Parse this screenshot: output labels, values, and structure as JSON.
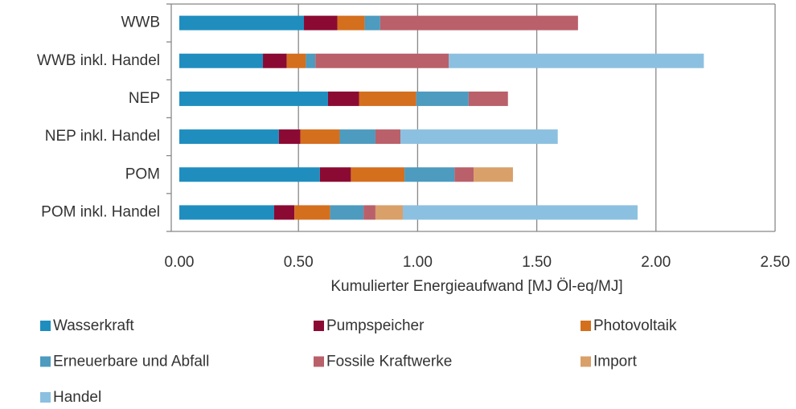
{
  "chart_data": {
    "type": "stacked_barh",
    "categories": [
      "WWB",
      "WWB inkl. Handel",
      "NEP",
      "NEP inkl. Handel",
      "POM",
      "POM inkl. Handel"
    ],
    "series": [
      {
        "name": "Wasserkraft",
        "color": "#1f8ebf",
        "values": [
          0.523,
          0.351,
          0.624,
          0.418,
          0.59,
          0.398
        ]
      },
      {
        "name": "Pumpspeicher",
        "color": "#8b0a33",
        "values": [
          0.14,
          0.1,
          0.13,
          0.09,
          0.13,
          0.085
        ]
      },
      {
        "name": "Photovoltaik",
        "color": "#d46f1e",
        "values": [
          0.115,
          0.08,
          0.24,
          0.165,
          0.225,
          0.15
        ]
      },
      {
        "name": "Erneuerbare und Abfall",
        "color": "#4d9bbf",
        "values": [
          0.065,
          0.04,
          0.22,
          0.15,
          0.21,
          0.14
        ]
      },
      {
        "name": "Fossile Kraftwerke",
        "color": "#b9606a",
        "values": [
          0.83,
          0.56,
          0.165,
          0.105,
          0.08,
          0.05
        ]
      },
      {
        "name": "Import",
        "color": "#d9a06a",
        "values": [
          0,
          0,
          0,
          0,
          0.165,
          0.115
        ]
      },
      {
        "name": "Handel",
        "color": "#8cc0e0",
        "values": [
          0,
          1.07,
          0,
          0.66,
          0,
          0.985
        ]
      }
    ],
    "xlabel": "Kumulierter Energieaufwand [MJ Öl-eq/MJ]",
    "xlim": [
      0,
      2.5
    ],
    "xticks": [
      {
        "value": 0,
        "label": "0.00"
      },
      {
        "value": 0.5,
        "label": "0.50"
      },
      {
        "value": 1,
        "label": "1.00"
      },
      {
        "value": 1.5,
        "label": "1.50"
      },
      {
        "value": 2,
        "label": "2.00"
      },
      {
        "value": 2.5,
        "label": "2.50"
      }
    ],
    "grid": true
  }
}
